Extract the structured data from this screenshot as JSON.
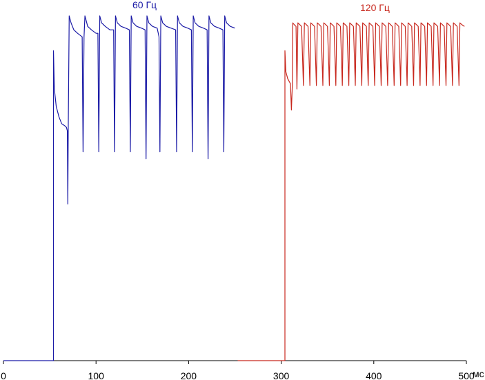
{
  "chart_data": {
    "type": "line",
    "xunit": "мс",
    "xlim": [
      0,
      500
    ],
    "ylim": [
      0,
      1
    ],
    "x_ticks": [
      "0",
      "100",
      "200",
      "300",
      "400",
      "500"
    ],
    "grid": false,
    "axis_color": "#000000",
    "series": [
      {
        "name": "60 Гц",
        "color": "#1a1aa6",
        "points": [
          [
            0,
            0
          ],
          [
            54,
            0
          ],
          [
            54,
            0.89
          ],
          [
            55,
            0.78
          ],
          [
            57,
            0.73
          ],
          [
            60,
            0.7
          ],
          [
            63,
            0.68
          ],
          [
            66,
            0.675
          ],
          [
            68,
            0.67
          ],
          [
            69,
            0.66
          ],
          [
            69.5,
            0.45
          ],
          [
            70,
            0.66
          ],
          [
            71,
            0.99
          ],
          [
            73,
            0.97
          ],
          [
            76,
            0.95
          ],
          [
            80,
            0.94
          ],
          [
            85,
            0.93
          ],
          [
            86,
            0.6
          ],
          [
            87,
            0.93
          ],
          [
            88,
            0.99
          ],
          [
            91,
            0.96
          ],
          [
            95,
            0.95
          ],
          [
            100,
            0.94
          ],
          [
            102,
            0.94
          ],
          [
            103,
            0.6
          ],
          [
            104,
            0.99
          ],
          [
            106,
            0.97
          ],
          [
            110,
            0.96
          ],
          [
            115,
            0.95
          ],
          [
            119,
            0.95
          ],
          [
            120,
            0.6
          ],
          [
            121,
            0.99
          ],
          [
            123,
            0.97
          ],
          [
            127,
            0.96
          ],
          [
            132,
            0.955
          ],
          [
            136,
            0.95
          ],
          [
            137,
            0.6
          ],
          [
            138,
            0.99
          ],
          [
            140,
            0.97
          ],
          [
            144,
            0.96
          ],
          [
            149,
            0.955
          ],
          [
            153,
            0.95
          ],
          [
            154,
            0.58
          ],
          [
            155,
            0.99
          ],
          [
            157,
            0.97
          ],
          [
            161,
            0.96
          ],
          [
            166,
            0.955
          ],
          [
            168,
            0.93
          ],
          [
            169,
            0.6
          ],
          [
            170,
            0.99
          ],
          [
            172,
            0.97
          ],
          [
            176,
            0.96
          ],
          [
            181,
            0.955
          ],
          [
            186,
            0.95
          ],
          [
            187,
            0.6
          ],
          [
            188,
            0.99
          ],
          [
            190,
            0.97
          ],
          [
            194,
            0.96
          ],
          [
            199,
            0.955
          ],
          [
            203,
            0.95
          ],
          [
            204,
            0.6
          ],
          [
            205,
            0.99
          ],
          [
            207,
            0.97
          ],
          [
            211,
            0.96
          ],
          [
            216,
            0.955
          ],
          [
            220,
            0.95
          ],
          [
            221,
            0.58
          ],
          [
            222,
            0.99
          ],
          [
            224,
            0.97
          ],
          [
            228,
            0.96
          ],
          [
            233,
            0.955
          ],
          [
            237,
            0.95
          ],
          [
            238,
            0.6
          ],
          [
            239,
            0.99
          ],
          [
            241,
            0.97
          ],
          [
            245,
            0.96
          ],
          [
            250,
            0.955
          ]
        ]
      },
      {
        "name": "120 Гц",
        "color": "#c8281e",
        "points": [
          [
            253,
            0
          ],
          [
            304,
            0
          ],
          [
            304,
            0.89
          ],
          [
            305,
            0.83
          ],
          [
            307,
            0.81
          ],
          [
            309,
            0.8
          ],
          [
            310,
            0.795
          ],
          [
            311,
            0.72
          ],
          [
            312,
            0.79
          ],
          [
            312.5,
            0.97
          ],
          [
            314,
            0.965
          ],
          [
            316,
            0.96
          ],
          [
            317,
            0.78
          ],
          [
            318,
            0.97
          ],
          [
            320,
            0.965
          ],
          [
            322,
            0.96
          ],
          [
            324,
            0.79
          ],
          [
            325,
            0.97
          ],
          [
            327,
            0.965
          ],
          [
            329,
            0.96
          ],
          [
            331,
            0.79
          ],
          [
            332,
            0.97
          ],
          [
            334,
            0.965
          ],
          [
            336,
            0.96
          ],
          [
            338,
            0.79
          ],
          [
            339,
            0.97
          ],
          [
            341,
            0.965
          ],
          [
            343,
            0.96
          ],
          [
            345,
            0.79
          ],
          [
            346,
            0.97
          ],
          [
            348,
            0.965
          ],
          [
            350,
            0.96
          ],
          [
            352,
            0.79
          ],
          [
            353,
            0.97
          ],
          [
            355,
            0.965
          ],
          [
            357,
            0.96
          ],
          [
            359,
            0.79
          ],
          [
            360,
            0.97
          ],
          [
            362,
            0.965
          ],
          [
            364,
            0.96
          ],
          [
            366,
            0.79
          ],
          [
            367,
            0.97
          ],
          [
            369,
            0.965
          ],
          [
            371,
            0.96
          ],
          [
            373,
            0.79
          ],
          [
            374,
            0.97
          ],
          [
            376,
            0.965
          ],
          [
            378,
            0.96
          ],
          [
            380,
            0.79
          ],
          [
            381,
            0.97
          ],
          [
            383,
            0.965
          ],
          [
            385,
            0.96
          ],
          [
            387,
            0.79
          ],
          [
            388,
            0.97
          ],
          [
            390,
            0.965
          ],
          [
            392,
            0.96
          ],
          [
            394,
            0.79
          ],
          [
            395,
            0.97
          ],
          [
            397,
            0.965
          ],
          [
            399,
            0.96
          ],
          [
            401,
            0.79
          ],
          [
            402,
            0.97
          ],
          [
            404,
            0.965
          ],
          [
            406,
            0.96
          ],
          [
            408,
            0.79
          ],
          [
            409,
            0.97
          ],
          [
            411,
            0.965
          ],
          [
            413,
            0.96
          ],
          [
            415,
            0.79
          ],
          [
            416,
            0.97
          ],
          [
            418,
            0.965
          ],
          [
            420,
            0.96
          ],
          [
            422,
            0.79
          ],
          [
            423,
            0.97
          ],
          [
            425,
            0.965
          ],
          [
            427,
            0.96
          ],
          [
            429,
            0.79
          ],
          [
            430,
            0.97
          ],
          [
            432,
            0.965
          ],
          [
            434,
            0.96
          ],
          [
            436,
            0.79
          ],
          [
            437,
            0.97
          ],
          [
            439,
            0.965
          ],
          [
            441,
            0.96
          ],
          [
            443,
            0.79
          ],
          [
            444,
            0.97
          ],
          [
            446,
            0.965
          ],
          [
            448,
            0.96
          ],
          [
            450,
            0.79
          ],
          [
            451,
            0.97
          ],
          [
            453,
            0.965
          ],
          [
            455,
            0.96
          ],
          [
            457,
            0.79
          ],
          [
            458,
            0.97
          ],
          [
            460,
            0.965
          ],
          [
            462,
            0.96
          ],
          [
            464,
            0.79
          ],
          [
            465,
            0.97
          ],
          [
            467,
            0.965
          ],
          [
            469,
            0.96
          ],
          [
            471,
            0.79
          ],
          [
            472,
            0.97
          ],
          [
            474,
            0.965
          ],
          [
            476,
            0.96
          ],
          [
            478,
            0.79
          ],
          [
            479,
            0.97
          ],
          [
            481,
            0.965
          ],
          [
            483,
            0.96
          ],
          [
            485,
            0.79
          ],
          [
            486,
            0.97
          ],
          [
            488,
            0.965
          ],
          [
            490,
            0.96
          ],
          [
            492,
            0.79
          ],
          [
            493,
            0.97
          ],
          [
            495,
            0.965
          ],
          [
            498,
            0.96
          ]
        ]
      }
    ]
  }
}
